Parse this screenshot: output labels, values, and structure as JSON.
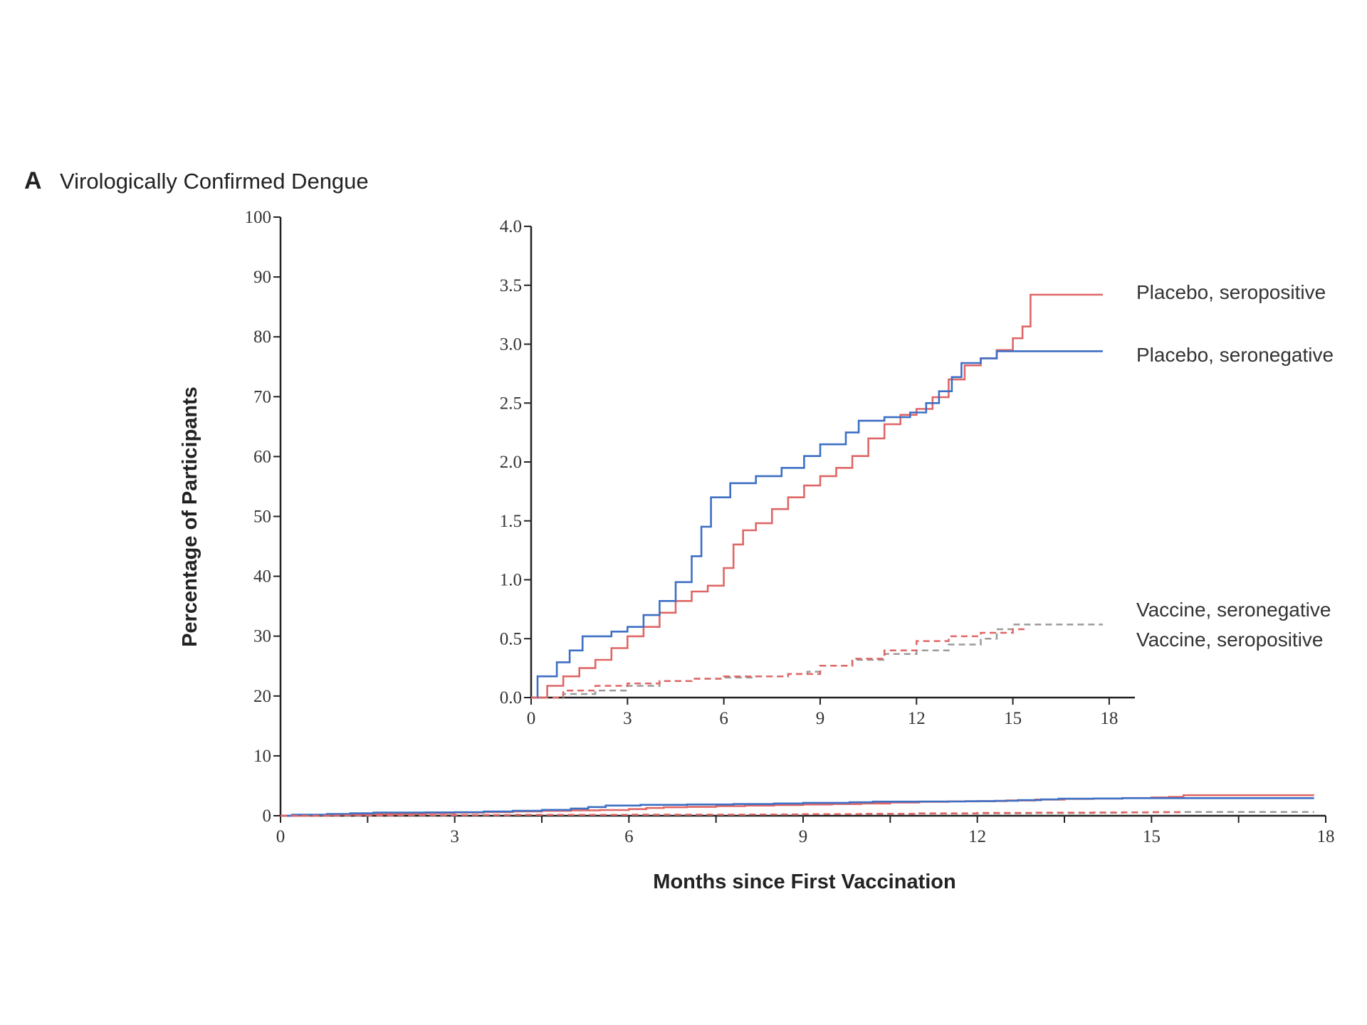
{
  "chart_data": {
    "type": "line",
    "panel_letter": "A",
    "title": "Virologically Confirmed Dengue",
    "xlabel": "Months since First Vaccination",
    "ylabel": "Percentage of Participants",
    "main": {
      "xlim": [
        0,
        18
      ],
      "ylim": [
        0,
        100
      ],
      "xticks": [
        0,
        3,
        6,
        9,
        12,
        15,
        18
      ],
      "yticks": [
        0,
        10,
        20,
        30,
        40,
        50,
        60,
        70,
        80,
        90,
        100
      ]
    },
    "inset": {
      "xlim": [
        0,
        18.8
      ],
      "ylim": [
        0,
        4.0
      ],
      "xticks": [
        0,
        3,
        6,
        9,
        12,
        15,
        18
      ],
      "yticks": [
        "0.0",
        "0.5",
        "1.0",
        "1.5",
        "2.0",
        "2.5",
        "3.0",
        "3.5",
        "4.0"
      ]
    },
    "colors": {
      "placebo_seropositive": "#e06666",
      "placebo_seronegative": "#3d6fc4",
      "vaccine_seronegative": "#9a9a9a",
      "vaccine_seropositive": "#e06666",
      "axis": "#222222"
    },
    "series": [
      {
        "name": "Placebo, seropositive",
        "style": "solid",
        "color": "#e06666",
        "points": [
          [
            0,
            0
          ],
          [
            0.5,
            0.1
          ],
          [
            1,
            0.18
          ],
          [
            1.5,
            0.25
          ],
          [
            2,
            0.32
          ],
          [
            2.5,
            0.42
          ],
          [
            3,
            0.52
          ],
          [
            3.5,
            0.6
          ],
          [
            4,
            0.72
          ],
          [
            4.5,
            0.82
          ],
          [
            5,
            0.9
          ],
          [
            5.5,
            0.95
          ],
          [
            6,
            1.1
          ],
          [
            6.3,
            1.3
          ],
          [
            6.6,
            1.42
          ],
          [
            7,
            1.48
          ],
          [
            7.5,
            1.6
          ],
          [
            8,
            1.7
          ],
          [
            8.5,
            1.8
          ],
          [
            9,
            1.88
          ],
          [
            9.5,
            1.95
          ],
          [
            10,
            2.05
          ],
          [
            10.5,
            2.2
          ],
          [
            11,
            2.32
          ],
          [
            11.5,
            2.4
          ],
          [
            12,
            2.45
          ],
          [
            12.5,
            2.55
          ],
          [
            13,
            2.7
          ],
          [
            13.5,
            2.82
          ],
          [
            14,
            2.88
          ],
          [
            14.5,
            2.95
          ],
          [
            15,
            3.05
          ],
          [
            15.3,
            3.15
          ],
          [
            15.55,
            3.42
          ],
          [
            17.8,
            3.42
          ]
        ]
      },
      {
        "name": "Placebo, seronegative",
        "style": "solid",
        "color": "#3d6fc4",
        "points": [
          [
            0,
            0
          ],
          [
            0.2,
            0.18
          ],
          [
            0.8,
            0.3
          ],
          [
            1.2,
            0.4
          ],
          [
            1.6,
            0.52
          ],
          [
            2.5,
            0.56
          ],
          [
            3,
            0.6
          ],
          [
            3.5,
            0.7
          ],
          [
            4,
            0.82
          ],
          [
            4.5,
            0.98
          ],
          [
            5,
            1.2
          ],
          [
            5.3,
            1.45
          ],
          [
            5.6,
            1.7
          ],
          [
            6.2,
            1.82
          ],
          [
            7,
            1.88
          ],
          [
            7.8,
            1.95
          ],
          [
            8.5,
            2.05
          ],
          [
            9,
            2.15
          ],
          [
            9.8,
            2.25
          ],
          [
            10.2,
            2.35
          ],
          [
            11,
            2.38
          ],
          [
            11.8,
            2.42
          ],
          [
            12.3,
            2.5
          ],
          [
            12.7,
            2.6
          ],
          [
            13.1,
            2.72
          ],
          [
            13.4,
            2.84
          ],
          [
            14,
            2.88
          ],
          [
            14.5,
            2.94
          ],
          [
            17.8,
            2.94
          ]
        ]
      },
      {
        "name": "Vaccine, seronegative",
        "style": "dashed",
        "color": "#9a9a9a",
        "points": [
          [
            0,
            0
          ],
          [
            1,
            0.03
          ],
          [
            2,
            0.06
          ],
          [
            3,
            0.1
          ],
          [
            4,
            0.14
          ],
          [
            5,
            0.16
          ],
          [
            6,
            0.17
          ],
          [
            7,
            0.18
          ],
          [
            8,
            0.2
          ],
          [
            8.6,
            0.22
          ],
          [
            9,
            0.27
          ],
          [
            10,
            0.32
          ],
          [
            11,
            0.37
          ],
          [
            12,
            0.4
          ],
          [
            13,
            0.45
          ],
          [
            14,
            0.5
          ],
          [
            14.5,
            0.58
          ],
          [
            15,
            0.62
          ],
          [
            17.8,
            0.62
          ]
        ]
      },
      {
        "name": "Vaccine, seropositive",
        "style": "dashed",
        "color": "#e06666",
        "points": [
          [
            0,
            0
          ],
          [
            1,
            0.06
          ],
          [
            2,
            0.1
          ],
          [
            3,
            0.12
          ],
          [
            4,
            0.14
          ],
          [
            5,
            0.16
          ],
          [
            6,
            0.18
          ],
          [
            7,
            0.18
          ],
          [
            8,
            0.2
          ],
          [
            9,
            0.27
          ],
          [
            10,
            0.33
          ],
          [
            11,
            0.4
          ],
          [
            12,
            0.48
          ],
          [
            13,
            0.52
          ],
          [
            14,
            0.55
          ],
          [
            15,
            0.58
          ],
          [
            15.5,
            0.58
          ]
        ]
      }
    ]
  }
}
